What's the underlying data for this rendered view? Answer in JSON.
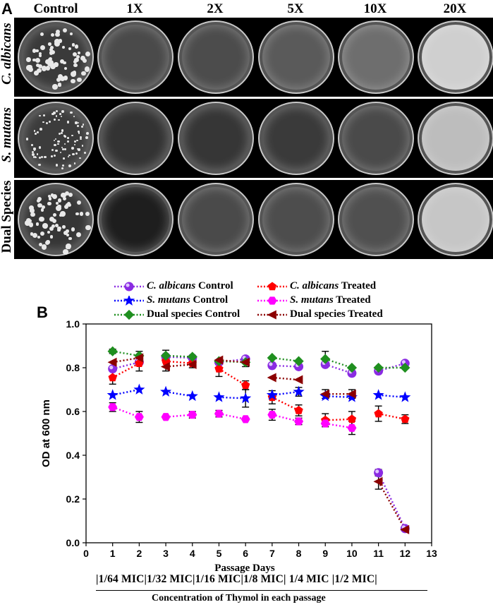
{
  "panel_a": {
    "letter": "A",
    "columns": [
      "Control",
      "1X",
      "2X",
      "5X",
      "10X",
      "20X"
    ],
    "rows": [
      {
        "label_italic": "C. albicans",
        "label_plain": ""
      },
      {
        "label_italic": "S. mutans",
        "label_plain": ""
      },
      {
        "label_italic": "",
        "label_plain": "Dual Species"
      }
    ],
    "dish_tones": [
      [
        "#3a3a3a",
        "#4a4a4a",
        "#4c4c4c",
        "#5a5a5a",
        "#6e6e6e",
        "#cfcfcf"
      ],
      [
        "#3c3c3c",
        "#333333",
        "#363636",
        "#3a3a3a",
        "#4a4a4a",
        "#bdbdbd"
      ],
      [
        "#363636",
        "#1e1e1e",
        "#4a4a4a",
        "#4d4d4d",
        "#505050",
        "#c6c6c6"
      ]
    ]
  },
  "panel_b": {
    "letter": "B",
    "legend": [
      {
        "italic": "C. albicans",
        "rest": " Control"
      },
      {
        "italic": "C. albicans",
        "rest": " Treated"
      },
      {
        "italic": "S. mutans",
        "rest": " Control"
      },
      {
        "italic": "S. mutans",
        "rest": " Treated"
      },
      {
        "italic": "",
        "rest": "Dual species Control"
      },
      {
        "italic": "",
        "rest": "Dual species Treated"
      }
    ],
    "footer": {
      "concentrations": "|1/64 MIC|1/32 MIC|1/16 MIC|1/8 MIC|  1/4 MIC  |1/2 MIC|",
      "caption": "Concentration of Thymol in each passage"
    }
  },
  "chart_data": {
    "type": "line",
    "xlabel": "Passage Days",
    "ylabel": "OD at 600 nm",
    "xlim": [
      0,
      13
    ],
    "ylim": [
      0.0,
      1.0
    ],
    "xticks": [
      0,
      1,
      2,
      3,
      4,
      5,
      6,
      7,
      8,
      9,
      10,
      11,
      12,
      13
    ],
    "yticks": [
      "0.0",
      "0.2",
      "0.4",
      "0.6",
      "0.8",
      "1.0"
    ],
    "grid": false,
    "legend_position": "top",
    "series": [
      {
        "name": "C. albicans Control",
        "color": "#8a2be2",
        "marker": "sphere",
        "segments": [
          [
            [
              1,
              0.795
            ],
            [
              2,
              0.825
            ]
          ],
          [
            [
              3,
              0.85
            ],
            [
              4,
              0.845
            ]
          ],
          [
            [
              5,
              0.825
            ],
            [
              6,
              0.84
            ]
          ],
          [
            [
              7,
              0.81
            ],
            [
              8,
              0.805
            ]
          ],
          [
            [
              9,
              0.815
            ],
            [
              10,
              0.775
            ]
          ],
          [
            [
              11,
              0.785
            ],
            [
              12,
              0.82
            ]
          ],
          [
            [
              11,
              0.32
            ],
            [
              12,
              0.065
            ]
          ]
        ]
      },
      {
        "name": "C. albicans Treated",
        "color": "#ff0000",
        "marker": "pentagon",
        "segments": [
          [
            [
              1,
              0.755
            ],
            [
              2,
              0.82
            ]
          ],
          [
            [
              3,
              0.83
            ],
            [
              4,
              0.82
            ]
          ],
          [
            [
              5,
              0.795
            ],
            [
              6,
              0.72
            ]
          ],
          [
            [
              7,
              0.665
            ],
            [
              8,
              0.605
            ]
          ],
          [
            [
              9,
              0.56
            ],
            [
              10,
              0.565
            ]
          ],
          [
            [
              11,
              0.59
            ],
            [
              12,
              0.565
            ]
          ]
        ]
      },
      {
        "name": "S. mutans Control",
        "color": "#0000ff",
        "marker": "star",
        "segments": [
          [
            [
              1,
              0.675
            ],
            [
              2,
              0.7
            ]
          ],
          [
            [
              3,
              0.69
            ],
            [
              4,
              0.67
            ]
          ],
          [
            [
              5,
              0.665
            ],
            [
              6,
              0.66
            ]
          ],
          [
            [
              7,
              0.675
            ],
            [
              8,
              0.69
            ]
          ],
          [
            [
              9,
              0.67
            ],
            [
              10,
              0.665
            ]
          ],
          [
            [
              11,
              0.675
            ],
            [
              12,
              0.665
            ]
          ]
        ]
      },
      {
        "name": "S. mutans Treated",
        "color": "#ff00ff",
        "marker": "hexagon",
        "segments": [
          [
            [
              1,
              0.62
            ],
            [
              2,
              0.575
            ]
          ],
          [
            [
              3,
              0.575
            ],
            [
              4,
              0.585
            ]
          ],
          [
            [
              5,
              0.59
            ],
            [
              6,
              0.565
            ]
          ],
          [
            [
              7,
              0.585
            ],
            [
              8,
              0.555
            ]
          ],
          [
            [
              9,
              0.545
            ],
            [
              10,
              0.525
            ]
          ]
        ]
      },
      {
        "name": "Dual species Control",
        "color": "#1f8f1f",
        "marker": "diamond",
        "segments": [
          [
            [
              1,
              0.875
            ],
            [
              2,
              0.855
            ]
          ],
          [
            [
              3,
              0.855
            ],
            [
              4,
              0.85
            ]
          ],
          [
            [
              5,
              0.83
            ],
            [
              6,
              0.825
            ]
          ],
          [
            [
              7,
              0.845
            ],
            [
              8,
              0.83
            ]
          ],
          [
            [
              9,
              0.84
            ],
            [
              10,
              0.8
            ]
          ],
          [
            [
              11,
              0.8
            ],
            [
              12,
              0.8
            ]
          ]
        ]
      },
      {
        "name": "Dual species Treated",
        "color": "#8b0000",
        "marker": "triangle-left",
        "segments": [
          [
            [
              1,
              0.825
            ],
            [
              2,
              0.845
            ]
          ],
          [
            [
              3,
              0.805
            ],
            [
              4,
              0.815
            ]
          ],
          [
            [
              5,
              0.835
            ],
            [
              6,
              0.825
            ]
          ],
          [
            [
              7,
              0.755
            ],
            [
              8,
              0.745
            ]
          ],
          [
            [
              9,
              0.68
            ],
            [
              10,
              0.68
            ]
          ],
          [
            [
              11,
              0.28
            ],
            [
              12,
              0.06
            ]
          ]
        ]
      }
    ],
    "error_bars": [
      {
        "x": 1,
        "y": 0.875,
        "e": 0.01
      },
      {
        "x": 1,
        "y": 0.755,
        "e": 0.03
      },
      {
        "x": 1,
        "y": 0.62,
        "e": 0.02
      },
      {
        "x": 2,
        "y": 0.845,
        "e": 0.03
      },
      {
        "x": 2,
        "y": 0.575,
        "e": 0.025
      },
      {
        "x": 2,
        "y": 0.82,
        "e": 0.035
      },
      {
        "x": 3,
        "y": 0.855,
        "e": 0.025
      },
      {
        "x": 3,
        "y": 0.805,
        "e": 0.02
      },
      {
        "x": 4,
        "y": 0.82,
        "e": 0.02
      },
      {
        "x": 4,
        "y": 0.585,
        "e": 0.015
      },
      {
        "x": 5,
        "y": 0.795,
        "e": 0.035
      },
      {
        "x": 5,
        "y": 0.59,
        "e": 0.015
      },
      {
        "x": 6,
        "y": 0.72,
        "e": 0.02
      },
      {
        "x": 6,
        "y": 0.66,
        "e": 0.04
      },
      {
        "x": 6,
        "y": 0.825,
        "e": 0.02
      },
      {
        "x": 7,
        "y": 0.665,
        "e": 0.03
      },
      {
        "x": 7,
        "y": 0.585,
        "e": 0.025
      },
      {
        "x": 8,
        "y": 0.605,
        "e": 0.025
      },
      {
        "x": 8,
        "y": 0.555,
        "e": 0.015
      },
      {
        "x": 8,
        "y": 0.69,
        "e": 0.02
      },
      {
        "x": 9,
        "y": 0.84,
        "e": 0.035
      },
      {
        "x": 9,
        "y": 0.56,
        "e": 0.03
      },
      {
        "x": 9,
        "y": 0.68,
        "e": 0.02
      },
      {
        "x": 10,
        "y": 0.525,
        "e": 0.03
      },
      {
        "x": 10,
        "y": 0.565,
        "e": 0.035
      },
      {
        "x": 10,
        "y": 0.68,
        "e": 0.02
      },
      {
        "x": 11,
        "y": 0.59,
        "e": 0.035
      },
      {
        "x": 11,
        "y": 0.32,
        "e": 0.015
      },
      {
        "x": 11,
        "y": 0.28,
        "e": 0.035
      },
      {
        "x": 12,
        "y": 0.565,
        "e": 0.02
      }
    ]
  }
}
